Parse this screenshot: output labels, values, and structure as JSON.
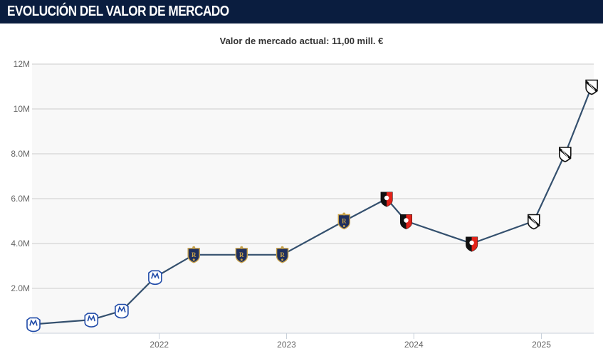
{
  "header": {
    "title": "EVOLUCIÓN DEL VALOR DE MERCADO"
  },
  "colors": {
    "header_bg": "#0a1d3f",
    "line": "#34506e",
    "grid": "#cccccc",
    "plot_bg": "#f8f8f8"
  },
  "chart_data": {
    "type": "line",
    "title": "Valor de mercado actual: 11,00 mill. €",
    "xlabel": "",
    "ylabel": "",
    "ylim": [
      0,
      12
    ],
    "y_unit": "M",
    "y_ticks": [
      {
        "value": 2,
        "label": "2.0M"
      },
      {
        "value": 4,
        "label": "4.0M"
      },
      {
        "value": 6,
        "label": "6.0M"
      },
      {
        "value": 8,
        "label": "8.0M"
      },
      {
        "value": 10,
        "label": "10M"
      },
      {
        "value": 12,
        "label": "12M"
      }
    ],
    "x_range": [
      "2021-01-01",
      "2025-05-31"
    ],
    "x_ticks": [
      {
        "date": "2022-01-01",
        "label": "2022"
      },
      {
        "date": "2023-01-01",
        "label": "2023"
      },
      {
        "date": "2024-01-01",
        "label": "2024"
      },
      {
        "date": "2025-01-01",
        "label": "2025"
      }
    ],
    "grid": true,
    "series": [
      {
        "points": [
          {
            "date": "2021-01-05",
            "value": 0.4,
            "club_icon": "millonarios-crest-icon"
          },
          {
            "date": "2021-06-20",
            "value": 0.6,
            "club_icon": "millonarios-crest-icon"
          },
          {
            "date": "2021-09-15",
            "value": 1.0,
            "club_icon": "millonarios-crest-icon"
          },
          {
            "date": "2021-12-20",
            "value": 2.5,
            "club_icon": "millonarios-crest-icon"
          },
          {
            "date": "2022-04-10",
            "value": 3.5,
            "club_icon": "real-salt-lake-crest-icon"
          },
          {
            "date": "2022-08-25",
            "value": 3.5,
            "club_icon": "real-salt-lake-crest-icon"
          },
          {
            "date": "2022-12-20",
            "value": 3.5,
            "club_icon": "real-salt-lake-crest-icon"
          },
          {
            "date": "2023-06-15",
            "value": 5.0,
            "club_icon": "real-salt-lake-crest-icon"
          },
          {
            "date": "2023-10-15",
            "value": 6.0,
            "club_icon": "rennes-crest-icon"
          },
          {
            "date": "2023-12-10",
            "value": 5.0,
            "club_icon": "rennes-crest-icon"
          },
          {
            "date": "2024-06-15",
            "value": 4.0,
            "club_icon": "rennes-crest-icon"
          },
          {
            "date": "2024-12-10",
            "value": 5.0,
            "club_icon": "vasco-crest-icon"
          },
          {
            "date": "2025-03-10",
            "value": 8.0,
            "club_icon": "vasco-crest-icon"
          },
          {
            "date": "2025-05-25",
            "value": 11.0,
            "club_icon": "vasco-crest-icon"
          }
        ]
      }
    ]
  }
}
